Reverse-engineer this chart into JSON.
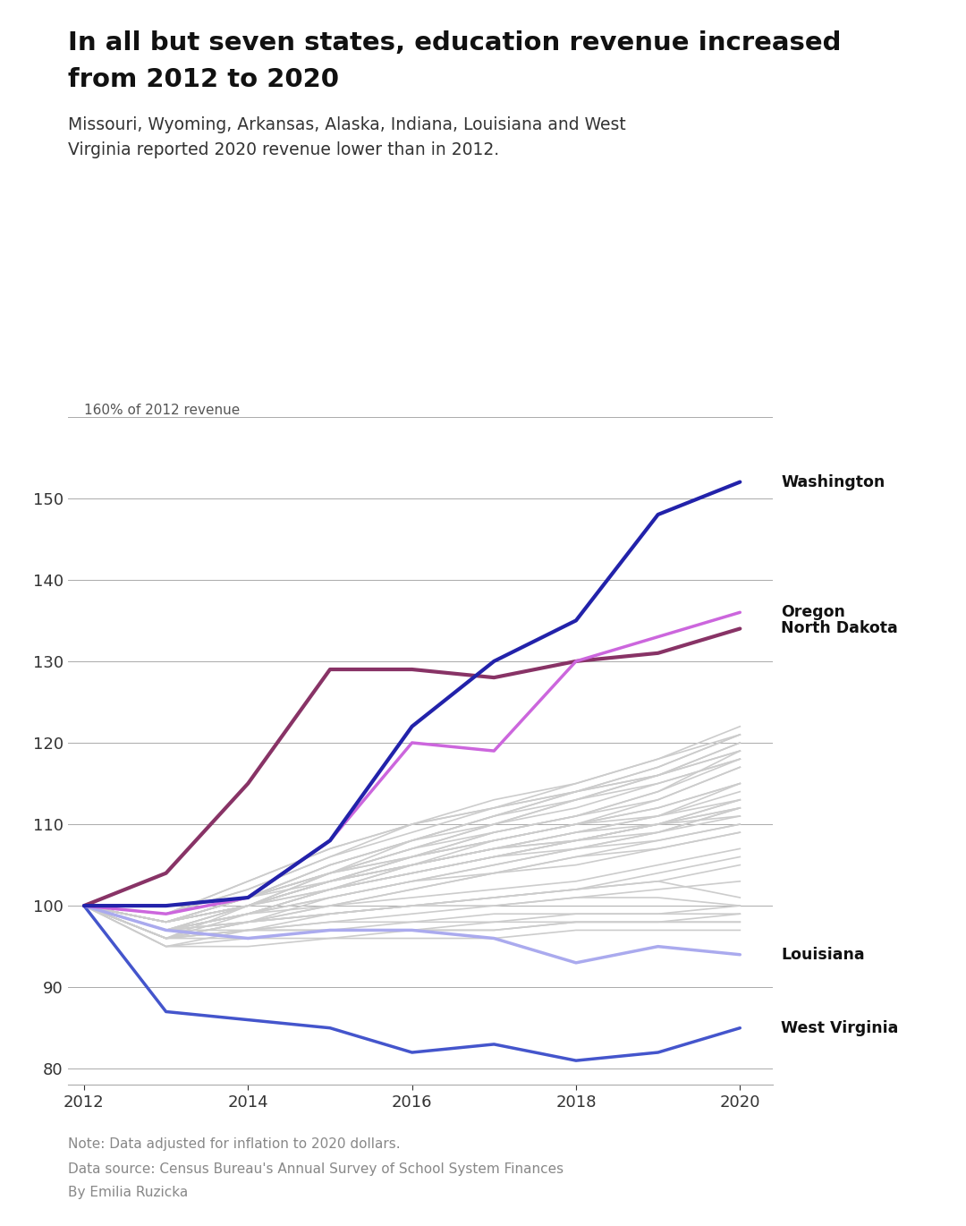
{
  "title": "In all but seven states, education revenue increased\nfrom 2012 to 2020",
  "subtitle": "Missouri, Wyoming, Arkansas, Alaska, Indiana, Louisiana and West\nVirginia reported 2020 revenue lower than in 2012.",
  "ylabel": "160% of 2012 revenue",
  "note": "Note: Data adjusted for inflation to 2020 dollars.",
  "source": "Data source: Census Bureau's Annual Survey of School System Finances\nBy Emilia Ruzicka",
  "years": [
    2012,
    2013,
    2014,
    2015,
    2016,
    2017,
    2018,
    2019,
    2020
  ],
  "highlighted": {
    "Washington": {
      "color": "#2222aa",
      "data": [
        100,
        100,
        101,
        108,
        122,
        130,
        135,
        148,
        152
      ]
    },
    "Oregon": {
      "color": "#cc66dd",
      "data": [
        100,
        99,
        101,
        108,
        120,
        119,
        130,
        133,
        136
      ]
    },
    "North Dakota": {
      "color": "#883366",
      "data": [
        100,
        104,
        115,
        129,
        129,
        128,
        130,
        131,
        134
      ]
    },
    "Louisiana": {
      "color": "#aaaaee",
      "data": [
        100,
        97,
        96,
        97,
        97,
        96,
        93,
        95,
        94
      ]
    },
    "West Virginia": {
      "color": "#4455cc",
      "data": [
        100,
        87,
        86,
        85,
        82,
        83,
        81,
        82,
        85
      ]
    }
  },
  "other_states": [
    [
      100,
      98,
      101,
      104,
      107,
      110,
      113,
      116,
      120
    ],
    [
      100,
      97,
      100,
      103,
      106,
      109,
      111,
      114,
      119
    ],
    [
      100,
      98,
      101,
      105,
      108,
      111,
      114,
      117,
      121
    ],
    [
      100,
      96,
      99,
      102,
      105,
      108,
      110,
      113,
      117
    ],
    [
      100,
      99,
      102,
      106,
      109,
      112,
      115,
      118,
      122
    ],
    [
      100,
      99,
      103,
      107,
      110,
      113,
      115,
      118,
      121
    ],
    [
      100,
      97,
      100,
      104,
      108,
      111,
      113,
      116,
      119
    ],
    [
      100,
      96,
      100,
      103,
      106,
      109,
      111,
      114,
      118
    ],
    [
      100,
      98,
      101,
      105,
      108,
      111,
      114,
      116,
      120
    ],
    [
      100,
      99,
      102,
      106,
      110,
      112,
      114,
      117,
      121
    ],
    [
      100,
      97,
      100,
      104,
      107,
      110,
      112,
      115,
      118
    ],
    [
      100,
      98,
      101,
      105,
      108,
      110,
      113,
      115,
      118
    ],
    [
      100,
      99,
      103,
      107,
      110,
      112,
      114,
      116,
      119
    ],
    [
      100,
      98,
      101,
      104,
      107,
      109,
      111,
      113,
      117
    ],
    [
      100,
      97,
      99,
      102,
      105,
      107,
      109,
      111,
      115
    ],
    [
      100,
      98,
      100,
      103,
      106,
      108,
      110,
      112,
      115
    ],
    [
      100,
      97,
      99,
      102,
      104,
      106,
      108,
      110,
      113
    ],
    [
      100,
      96,
      98,
      101,
      103,
      105,
      107,
      109,
      112
    ],
    [
      100,
      97,
      99,
      100,
      102,
      104,
      106,
      108,
      110
    ],
    [
      100,
      98,
      100,
      103,
      105,
      107,
      109,
      111,
      114
    ],
    [
      100,
      99,
      101,
      104,
      106,
      108,
      110,
      112,
      115
    ],
    [
      100,
      98,
      100,
      103,
      105,
      107,
      109,
      110,
      113
    ],
    [
      100,
      97,
      99,
      102,
      104,
      106,
      108,
      109,
      112
    ],
    [
      100,
      98,
      100,
      103,
      105,
      107,
      108,
      110,
      112
    ],
    [
      100,
      99,
      101,
      104,
      106,
      108,
      110,
      111,
      113
    ],
    [
      100,
      97,
      99,
      101,
      103,
      105,
      107,
      109,
      111
    ],
    [
      100,
      96,
      98,
      100,
      102,
      104,
      106,
      107,
      109
    ],
    [
      100,
      98,
      100,
      102,
      104,
      106,
      108,
      110,
      111
    ],
    [
      100,
      99,
      101,
      103,
      105,
      107,
      108,
      110,
      112
    ],
    [
      100,
      98,
      100,
      102,
      104,
      106,
      107,
      108,
      110
    ],
    [
      100,
      97,
      99,
      101,
      103,
      104,
      105,
      107,
      109
    ],
    [
      100,
      96,
      98,
      100,
      101,
      102,
      103,
      105,
      107
    ],
    [
      100,
      95,
      97,
      99,
      100,
      101,
      102,
      104,
      106
    ],
    [
      100,
      97,
      98,
      99,
      100,
      101,
      102,
      103,
      105
    ],
    [
      100,
      96,
      97,
      98,
      99,
      100,
      101,
      102,
      103
    ],
    [
      100,
      97,
      98,
      99,
      100,
      101,
      102,
      103,
      101
    ],
    [
      100,
      97,
      98,
      99,
      100,
      100,
      101,
      101,
      100
    ],
    [
      100,
      96,
      97,
      97,
      98,
      98,
      99,
      99,
      99
    ],
    [
      100,
      95,
      96,
      96,
      97,
      97,
      98,
      98,
      98
    ],
    [
      100,
      96,
      96,
      97,
      97,
      97,
      98,
      98,
      98
    ],
    [
      100,
      95,
      95,
      96,
      96,
      96,
      97,
      97,
      97
    ],
    [
      100,
      96,
      97,
      97,
      97,
      98,
      98,
      98,
      99
    ],
    [
      100,
      97,
      97,
      98,
      98,
      99,
      99,
      99,
      100
    ]
  ],
  "ylim": [
    78,
    163
  ],
  "yticks": [
    80,
    90,
    100,
    110,
    120,
    130,
    140,
    150
  ],
  "xlim": [
    2011.8,
    2020.4
  ],
  "bg_color": "#ffffff",
  "grid_color": "#aaaaaa",
  "other_color": "#cccccc"
}
